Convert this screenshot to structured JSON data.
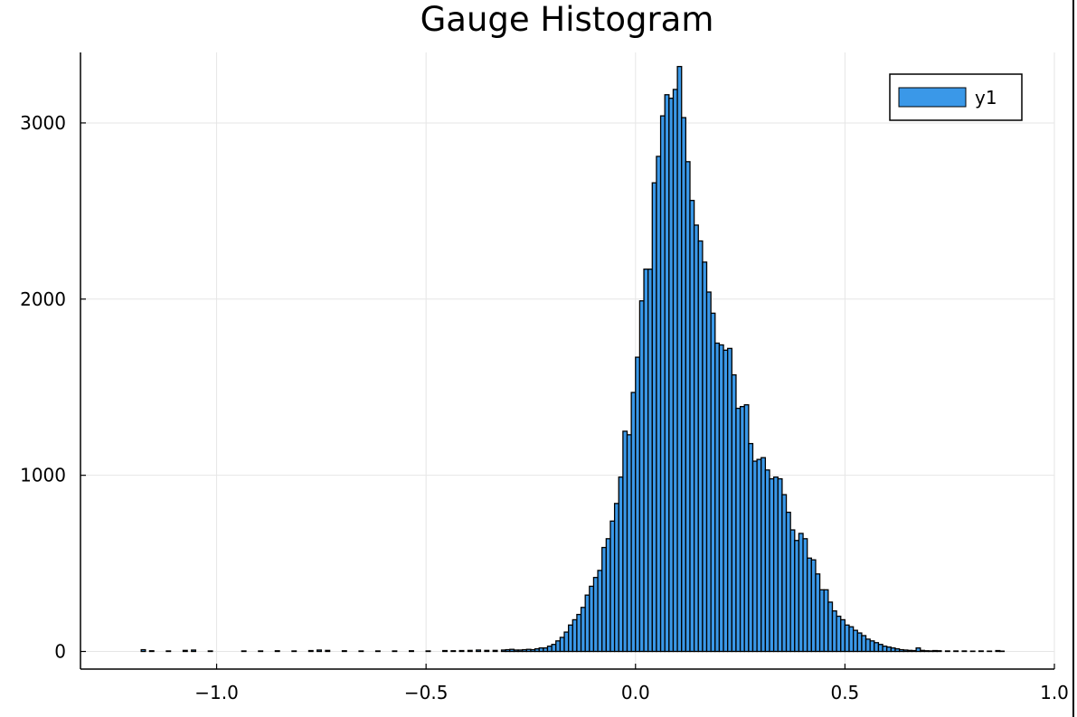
{
  "chart_data": {
    "type": "bar",
    "title": "Gauge Histogram",
    "xlabel": "",
    "ylabel": "",
    "xlim": [
      -1.325,
      1.0
    ],
    "ylim": [
      -100,
      3400
    ],
    "grid": true,
    "legend_position": "top-right",
    "bar_color": "#3a98e8",
    "edge_color": "#000000",
    "x_ticks": [
      {
        "value": -1.0,
        "label": "−1.0"
      },
      {
        "value": -0.5,
        "label": "−0.5"
      },
      {
        "value": 0.0,
        "label": "0.0"
      },
      {
        "value": 0.5,
        "label": "0.5"
      },
      {
        "value": 1.0,
        "label": "1.0"
      }
    ],
    "y_ticks": [
      {
        "value": 0,
        "label": "0"
      },
      {
        "value": 1000,
        "label": "1000"
      },
      {
        "value": 2000,
        "label": "2000"
      },
      {
        "value": 3000,
        "label": "3000"
      }
    ],
    "bin_width": 0.01,
    "series": [
      {
        "name": "y1",
        "bins": [
          [
            -1.2,
            0
          ],
          [
            -1.18,
            10
          ],
          [
            -1.16,
            4
          ],
          [
            -1.12,
            3
          ],
          [
            -1.08,
            6
          ],
          [
            -1.06,
            8
          ],
          [
            -1.02,
            3
          ],
          [
            -0.94,
            3
          ],
          [
            -0.9,
            3
          ],
          [
            -0.86,
            4
          ],
          [
            -0.82,
            3
          ],
          [
            -0.78,
            5
          ],
          [
            -0.76,
            8
          ],
          [
            -0.74,
            6
          ],
          [
            -0.7,
            4
          ],
          [
            -0.66,
            3
          ],
          [
            -0.62,
            3
          ],
          [
            -0.58,
            3
          ],
          [
            -0.54,
            4
          ],
          [
            -0.5,
            3
          ],
          [
            -0.46,
            5
          ],
          [
            -0.44,
            4
          ],
          [
            -0.42,
            5
          ],
          [
            -0.4,
            6
          ],
          [
            -0.38,
            8
          ],
          [
            -0.36,
            6
          ],
          [
            -0.34,
            6
          ],
          [
            -0.32,
            8
          ],
          [
            -0.31,
            10
          ],
          [
            -0.3,
            12
          ],
          [
            -0.29,
            8
          ],
          [
            -0.28,
            8
          ],
          [
            -0.27,
            10
          ],
          [
            -0.26,
            12
          ],
          [
            -0.25,
            10
          ],
          [
            -0.24,
            15
          ],
          [
            -0.23,
            20
          ],
          [
            -0.22,
            20
          ],
          [
            -0.21,
            30
          ],
          [
            -0.2,
            40
          ],
          [
            -0.19,
            60
          ],
          [
            -0.18,
            80
          ],
          [
            -0.17,
            110
          ],
          [
            -0.16,
            150
          ],
          [
            -0.15,
            180
          ],
          [
            -0.14,
            210
          ],
          [
            -0.13,
            250
          ],
          [
            -0.12,
            320
          ],
          [
            -0.11,
            370
          ],
          [
            -0.1,
            420
          ],
          [
            -0.09,
            460
          ],
          [
            -0.08,
            590
          ],
          [
            -0.07,
            640
          ],
          [
            -0.06,
            740
          ],
          [
            -0.05,
            840
          ],
          [
            -0.04,
            990
          ],
          [
            -0.03,
            1250
          ],
          [
            -0.02,
            1230
          ],
          [
            -0.01,
            1470
          ],
          [
            0.0,
            1670
          ],
          [
            0.01,
            1990
          ],
          [
            0.02,
            2170
          ],
          [
            0.03,
            2170
          ],
          [
            0.04,
            2660
          ],
          [
            0.05,
            2810
          ],
          [
            0.06,
            3040
          ],
          [
            0.07,
            3160
          ],
          [
            0.08,
            3140
          ],
          [
            0.09,
            3190
          ],
          [
            0.1,
            3320
          ],
          [
            0.11,
            3030
          ],
          [
            0.12,
            2780
          ],
          [
            0.13,
            2560
          ],
          [
            0.14,
            2420
          ],
          [
            0.15,
            2330
          ],
          [
            0.16,
            2210
          ],
          [
            0.17,
            2040
          ],
          [
            0.18,
            1920
          ],
          [
            0.19,
            1750
          ],
          [
            0.2,
            1740
          ],
          [
            0.21,
            1710
          ],
          [
            0.22,
            1720
          ],
          [
            0.23,
            1570
          ],
          [
            0.24,
            1380
          ],
          [
            0.25,
            1390
          ],
          [
            0.26,
            1400
          ],
          [
            0.27,
            1180
          ],
          [
            0.28,
            1080
          ],
          [
            0.29,
            1090
          ],
          [
            0.3,
            1100
          ],
          [
            0.31,
            1030
          ],
          [
            0.32,
            980
          ],
          [
            0.33,
            990
          ],
          [
            0.34,
            980
          ],
          [
            0.35,
            890
          ],
          [
            0.36,
            790
          ],
          [
            0.37,
            690
          ],
          [
            0.38,
            630
          ],
          [
            0.39,
            670
          ],
          [
            0.4,
            640
          ],
          [
            0.41,
            530
          ],
          [
            0.42,
            520
          ],
          [
            0.43,
            440
          ],
          [
            0.44,
            350
          ],
          [
            0.45,
            350
          ],
          [
            0.46,
            280
          ],
          [
            0.47,
            230
          ],
          [
            0.48,
            200
          ],
          [
            0.49,
            180
          ],
          [
            0.5,
            150
          ],
          [
            0.51,
            140
          ],
          [
            0.52,
            120
          ],
          [
            0.53,
            105
          ],
          [
            0.54,
            90
          ],
          [
            0.55,
            70
          ],
          [
            0.56,
            60
          ],
          [
            0.57,
            50
          ],
          [
            0.58,
            40
          ],
          [
            0.59,
            30
          ],
          [
            0.6,
            25
          ],
          [
            0.61,
            20
          ],
          [
            0.62,
            15
          ],
          [
            0.63,
            10
          ],
          [
            0.64,
            8
          ],
          [
            0.65,
            6
          ],
          [
            0.66,
            5
          ],
          [
            0.67,
            20
          ],
          [
            0.68,
            6
          ],
          [
            0.69,
            4
          ],
          [
            0.7,
            3
          ],
          [
            0.71,
            5
          ],
          [
            0.72,
            4
          ],
          [
            0.74,
            3
          ],
          [
            0.76,
            3
          ],
          [
            0.78,
            3
          ],
          [
            0.8,
            2
          ],
          [
            0.82,
            3
          ],
          [
            0.84,
            2
          ],
          [
            0.86,
            5
          ],
          [
            0.87,
            2
          ]
        ]
      }
    ]
  }
}
